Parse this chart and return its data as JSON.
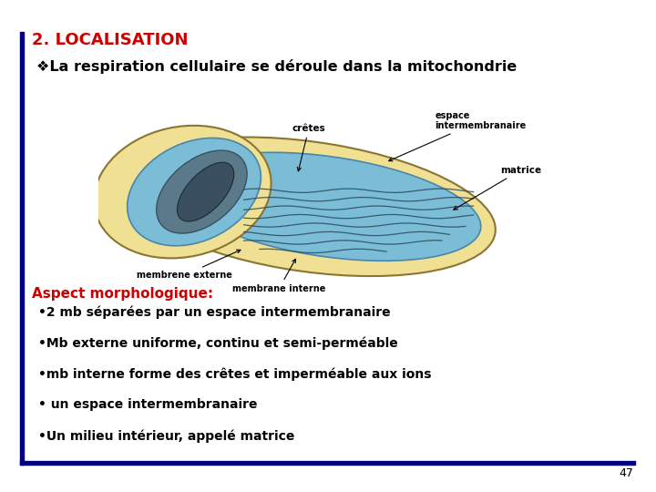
{
  "title": "2. LOCALISATION",
  "title_color": "#CC0000",
  "title_fontsize": 13,
  "subtitle": "❖La respiration cellulaire se déroule dans la mitochondrie",
  "subtitle_color": "#000000",
  "subtitle_fontsize": 11.5,
  "aspect_title": "Aspect morphologique:",
  "aspect_color": "#CC0000",
  "aspect_fontsize": 11,
  "bullets": [
    "•2 mb séparées par un espace intermembranaire",
    "•Mb externe uniforme, continu et semi-perméable",
    "•mb interne forme des crêtes et imperméable aux ions",
    "• un espace intermembranaire",
    "•Un milieu intérieur, appelé matrice"
  ],
  "bullets_color": "#000000",
  "bullets_fontsize": 10,
  "page_number": "47",
  "background_color": "#ffffff",
  "bar_color": "#000080",
  "line_color": "#000080",
  "mito_outer_face": "#F0E094",
  "mito_outer_edge": "#8B7530",
  "mito_inner_face": "#7BBCD6",
  "mito_inner_edge": "#4A85AA",
  "mito_dark_face": "#5A7A8A",
  "mito_darker_face": "#3A5060",
  "mito_cristae_color": "#2A4A5A",
  "label_fontsize": 7.5
}
